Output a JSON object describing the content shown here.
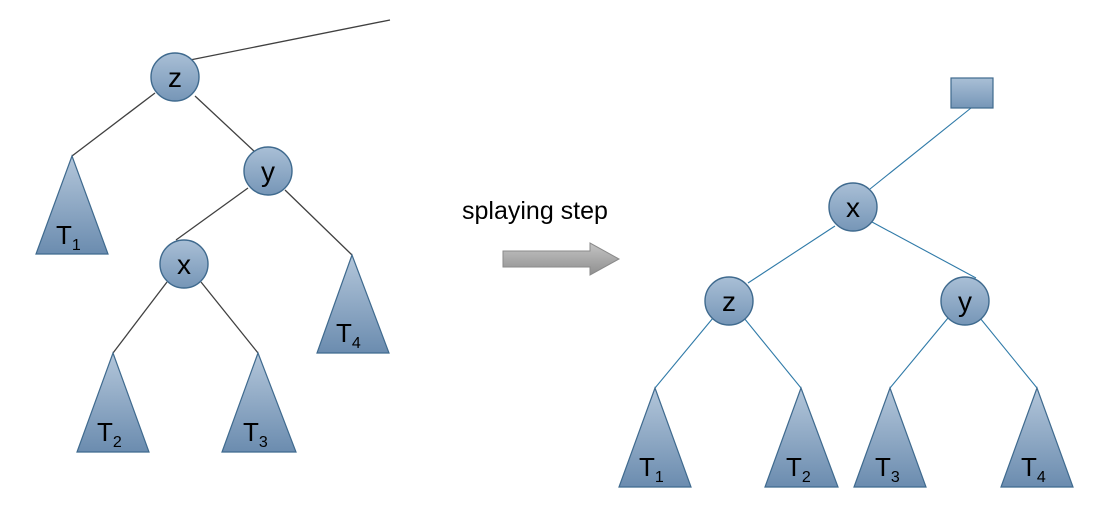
{
  "caption": "splaying step",
  "colors": {
    "node_fill_top": "#a9bfd6",
    "node_fill_bottom": "#6f8fb0",
    "node_stroke": "#3f6a8e",
    "edge_left": "#404040",
    "edge_right": "#2f7aa8",
    "arrow_fill": "#a8a8a8"
  },
  "before": {
    "nodes": {
      "z": "z",
      "y": "y",
      "x": "x"
    },
    "subtrees": [
      {
        "main": "T",
        "sub": "1"
      },
      {
        "main": "T",
        "sub": "2"
      },
      {
        "main": "T",
        "sub": "3"
      },
      {
        "main": "T",
        "sub": "4"
      }
    ]
  },
  "after": {
    "nodes": {
      "x": "x",
      "z": "z",
      "y": "y"
    },
    "subtrees": [
      {
        "main": "T",
        "sub": "1"
      },
      {
        "main": "T",
        "sub": "2"
      },
      {
        "main": "T",
        "sub": "3"
      },
      {
        "main": "T",
        "sub": "4"
      }
    ]
  }
}
